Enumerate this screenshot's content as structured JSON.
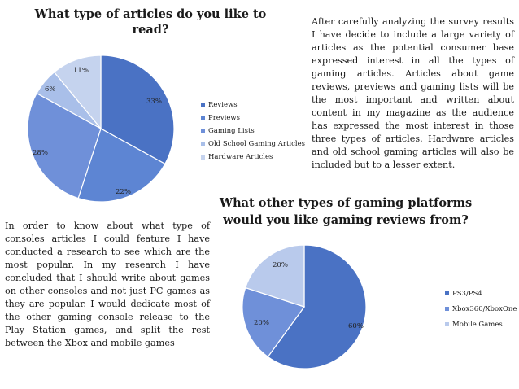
{
  "chart_data": [
    {
      "type": "pie",
      "title": "What type of articles do you like to read?",
      "categories": [
        "Reviews",
        "Previews",
        "Gaming Lists",
        "Old School Gaming Articles",
        "Hardware Articles"
      ],
      "values": [
        33,
        22,
        28,
        6,
        11
      ],
      "value_labels": [
        "33%",
        "22%",
        "28%",
        "6%",
        "11%"
      ],
      "colors": [
        "#4a72c4",
        "#5d85d3",
        "#6f90d9",
        "#a9bfe9",
        "#c5d3ee"
      ],
      "legend": "right"
    },
    {
      "type": "pie",
      "title": "What other types of gaming platforms would you like gaming reviews from?",
      "categories": [
        "PS3/PS4",
        "Xbox360/XboxOne",
        "Mobile Games"
      ],
      "values": [
        60,
        20,
        20
      ],
      "value_labels": [
        "60%",
        "20%",
        "20%"
      ],
      "colors": [
        "#4a72c4",
        "#6f90d9",
        "#b9caec"
      ],
      "legend": "right"
    }
  ],
  "text": {
    "paragraph_top": "After carefully analyzing the survey results I have decide to include a large variety of articles as the potential consumer base expressed interest in all the types of gaming articles. Articles about game reviews, previews and gaming lists will be the most important and written about content in my magazine as the audience has expressed the most interest in those three types of articles. Hardware articles and old school gaming articles will also be included but to a lesser extent.",
    "paragraph_bottom": "In order to know about what type of consoles articles I could feature I have conducted a research to see which are the most popular. In my research I have concluded that I should write about games on other consoles and not just PC games as they are popular. I would dedicate most of the other gaming console release to the Play Station games, and split the rest between the Xbox and mobile games"
  }
}
